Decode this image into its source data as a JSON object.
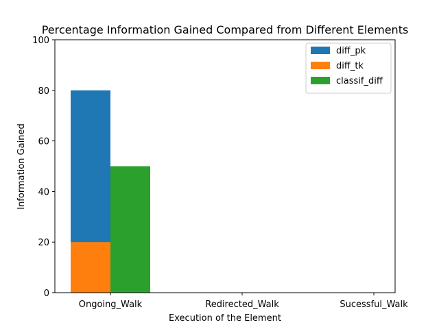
{
  "chart_data": {
    "type": "bar",
    "title": "Percentage Information Gained Compared from Different Elements",
    "xlabel": "Execution of the Element",
    "ylabel": "Information Gained",
    "categories": [
      "Ongoing_Walk",
      "Redirected_Walk",
      "Sucessful_Walk"
    ],
    "ylim": [
      0,
      100
    ],
    "yticks": [
      0,
      20,
      40,
      60,
      80,
      100
    ],
    "grid": false,
    "legend_position": "top-right",
    "series": [
      {
        "name": "diff_pk",
        "color": "#1f77b4",
        "values": [
          80,
          0,
          0
        ]
      },
      {
        "name": "diff_tk",
        "color": "#ff7f0e",
        "values": [
          20,
          0,
          0
        ]
      },
      {
        "name": "classif_diff",
        "color": "#2ca02c",
        "values": [
          50,
          0,
          0
        ]
      }
    ]
  }
}
